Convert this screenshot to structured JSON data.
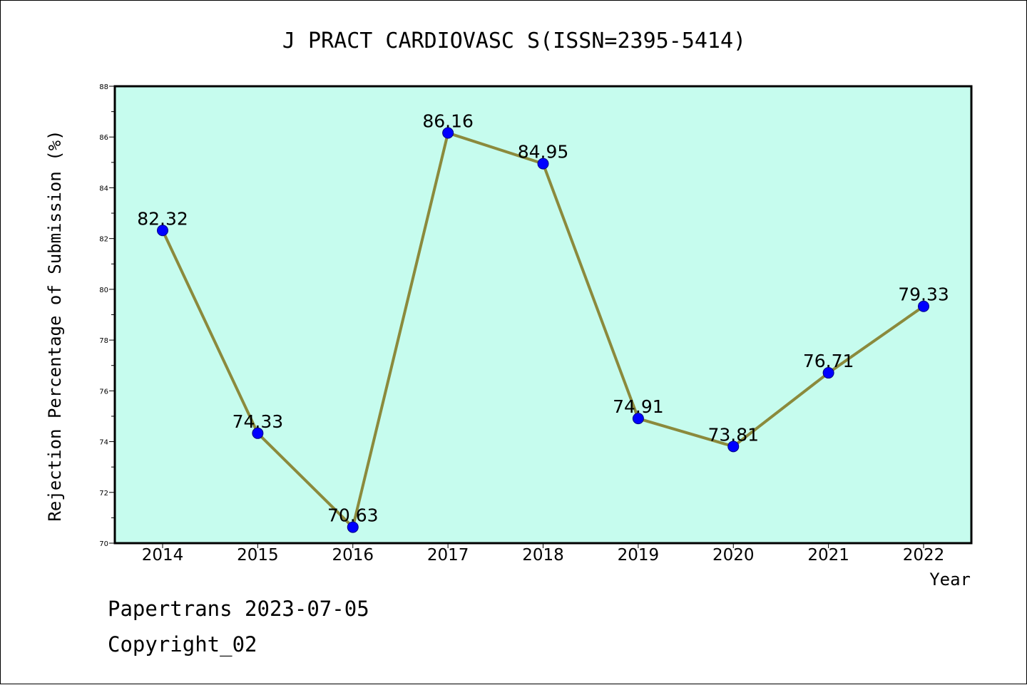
{
  "chart_data": {
    "type": "line",
    "title": "J PRACT CARDIOVASC S(ISSN=2395-5414)",
    "xlabel": "Year",
    "ylabel": "Rejection Percentage of Submission (%)",
    "categories": [
      "2014",
      "2015",
      "2016",
      "2017",
      "2018",
      "2019",
      "2020",
      "2021",
      "2022"
    ],
    "series": [
      {
        "values": [
          82.32,
          74.33,
          70.63,
          86.16,
          84.95,
          74.91,
          73.81,
          76.71,
          79.33
        ],
        "data_labels": [
          "82.32",
          "74.33",
          "70.63",
          "86.16",
          "84.95",
          "74.91",
          "73.81",
          "76.71",
          "79.33"
        ]
      }
    ],
    "ylim": [
      70,
      88
    ],
    "yticks": [
      70,
      72,
      74,
      76,
      78,
      80,
      82,
      84,
      86,
      88
    ],
    "grid": false,
    "colors": {
      "plot_background": "#c6fcee",
      "line": "#8b8a3c",
      "marker": "#0000ff"
    }
  },
  "footer": {
    "line1": "Papertrans 2023-07-05",
    "line2": "Copyright_02"
  }
}
